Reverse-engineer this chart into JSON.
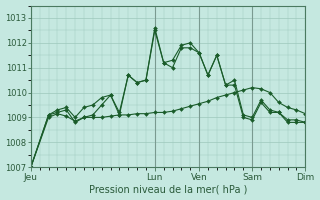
{
  "background_color": "#c5e8e0",
  "grid_color": "#9dc8bc",
  "line_color": "#1a5c2a",
  "ylim": [
    1007,
    1013
  ],
  "yticks": [
    1007,
    1008,
    1009,
    1010,
    1011,
    1012,
    1013
  ],
  "xlabel": "Pression niveau de la mer( hPa )",
  "day_labels": [
    "Jeu",
    "Lun",
    "Ven",
    "Sam",
    "Dim"
  ],
  "day_positions": [
    0,
    14,
    19,
    25,
    31
  ],
  "series1_x": [
    0,
    2,
    3,
    4,
    5,
    6,
    7,
    8,
    9,
    10,
    11,
    12,
    13,
    14,
    15,
    16,
    17,
    18,
    19,
    20,
    21,
    22,
    23,
    24,
    25,
    26,
    27,
    28,
    29,
    30,
    31,
    32
  ],
  "series1": [
    1007.0,
    1009.1,
    1009.2,
    1009.3,
    1008.8,
    1009.0,
    1009.1,
    1009.5,
    1009.9,
    1009.2,
    1010.7,
    1010.4,
    1010.5,
    1012.5,
    1011.2,
    1011.0,
    1011.8,
    1011.8,
    1011.6,
    1010.7,
    1011.5,
    1010.3,
    1010.3,
    1009.0,
    1008.9,
    1009.6,
    1009.2,
    1009.2,
    1008.8,
    1008.8,
    1008.8,
    1009.0
  ],
  "series2": [
    1007.0,
    1009.0,
    1009.15,
    1009.05,
    1008.85,
    1009.0,
    1009.0,
    1009.0,
    1009.05,
    1009.1,
    1009.1,
    1009.15,
    1009.15,
    1009.2,
    1009.2,
    1009.25,
    1009.35,
    1009.45,
    1009.55,
    1009.65,
    1009.8,
    1009.9,
    1010.0,
    1010.1,
    1010.2,
    1010.15,
    1010.0,
    1009.6,
    1009.4,
    1009.3,
    1009.15,
    1009.0
  ],
  "series3": [
    1007.0,
    1009.1,
    1009.3,
    1009.4,
    1009.0,
    1009.4,
    1009.5,
    1009.8,
    1009.9,
    1009.1,
    1010.7,
    1010.4,
    1010.5,
    1012.6,
    1011.2,
    1011.3,
    1011.9,
    1012.0,
    1011.6,
    1010.7,
    1011.5,
    1010.3,
    1010.5,
    1009.1,
    1009.0,
    1009.7,
    1009.3,
    1009.2,
    1008.9,
    1008.9,
    1008.8,
    1009.0
  ],
  "vline_color": "#7a9a90",
  "spine_color": "#4a7a60",
  "tick_color": "#2a5a3a",
  "xlabel_color": "#2a5a3a",
  "xlabel_fontsize": 7,
  "ytick_fontsize": 6,
  "xtick_fontsize": 6.5
}
